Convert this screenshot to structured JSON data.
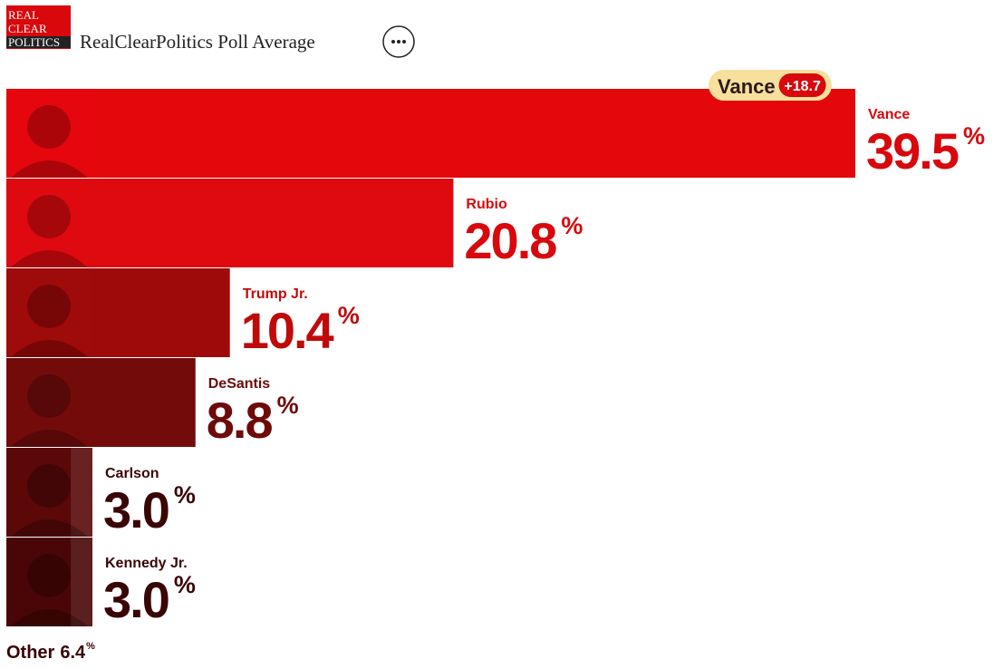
{
  "logo": [
    "REAL",
    "CLEAR",
    "POLITICS"
  ],
  "chart_data": {
    "type": "bar",
    "orientation": "horizontal",
    "title": "RealClearPolitics Poll Average",
    "categories": [
      "Vance",
      "Rubio",
      "Trump Jr.",
      "DeSantis",
      "Carlson",
      "Kennedy Jr."
    ],
    "values": [
      39.5,
      20.8,
      10.4,
      8.8,
      3.0,
      3.0
    ],
    "value_labels": [
      "39.5",
      "20.8",
      "10.4",
      "8.8",
      "3.0",
      "3.0"
    ],
    "value_suffix": "%",
    "colors": [
      "#e4080d",
      "#de0a0f",
      "#9e0a0a",
      "#740b0b",
      "#5a0909",
      "#4a0707"
    ],
    "label_colors": [
      "#d8080c",
      "#d8080c",
      "#c00a0a",
      "#6e0a0a",
      "#3a0505",
      "#3a0505"
    ],
    "lead": {
      "name": "Vance",
      "value": 18.7,
      "value_label": "+18.7"
    },
    "other": {
      "name": "Other",
      "value": 6.4
    }
  }
}
